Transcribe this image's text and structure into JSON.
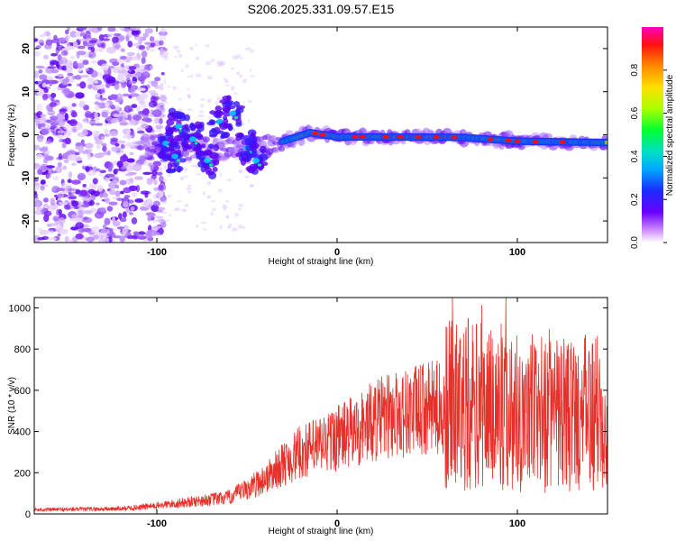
{
  "title": "S206.2025.331.09.57.E15",
  "chart_data": [
    {
      "type": "heatmap",
      "xlabel": "Height of straight line (km)",
      "ylabel": "Frequency (Hz)",
      "xlim": [
        -168,
        150
      ],
      "ylim": [
        -25,
        25
      ],
      "xticks": [
        -100,
        0,
        100
      ],
      "yticks": [
        -20,
        -10,
        0,
        10,
        20
      ],
      "colorbar": {
        "label": "Normalized spectral amplitude",
        "range": [
          0,
          1
        ],
        "ticks": [
          "0.0",
          "0.2",
          "0.4",
          "0.6",
          "0.8"
        ]
      },
      "ridge": [
        {
          "x": -100,
          "f": -3.0
        },
        {
          "x": -60,
          "f": -3.5
        },
        {
          "x": -40,
          "f": -3.0
        },
        {
          "x": -30,
          "f": -1.5
        },
        {
          "x": -15,
          "f": 0.5
        },
        {
          "x": 0,
          "f": -0.5
        },
        {
          "x": 25,
          "f": -0.5
        },
        {
          "x": 70,
          "f": -0.6
        },
        {
          "x": 100,
          "f": -1.5
        },
        {
          "x": 150,
          "f": -1.8
        }
      ]
    },
    {
      "type": "line",
      "xlabel": "Height of straight line (km)",
      "ylabel": "SNR (10 * v/v)",
      "xlim": [
        -168,
        150
      ],
      "ylim": [
        0,
        1050
      ],
      "xticks": [
        -100,
        0,
        100
      ],
      "yticks": [
        0,
        200,
        400,
        600,
        800,
        1000
      ],
      "color": "#e8302a",
      "envelope": [
        {
          "x": -168,
          "snr": 20
        },
        {
          "x": -120,
          "snr": 25
        },
        {
          "x": -100,
          "snr": 40
        },
        {
          "x": -80,
          "snr": 60
        },
        {
          "x": -60,
          "snr": 80
        },
        {
          "x": -50,
          "snr": 120
        },
        {
          "x": -40,
          "snr": 170
        },
        {
          "x": -30,
          "snr": 240
        },
        {
          "x": -20,
          "snr": 300
        },
        {
          "x": -10,
          "snr": 330
        },
        {
          "x": 0,
          "snr": 370
        },
        {
          "x": 10,
          "snr": 400
        },
        {
          "x": 20,
          "snr": 450
        },
        {
          "x": 30,
          "snr": 480
        },
        {
          "x": 50,
          "snr": 510
        },
        {
          "x": 70,
          "snr": 530
        },
        {
          "x": 90,
          "snr": 520
        },
        {
          "x": 110,
          "snr": 490
        },
        {
          "x": 130,
          "snr": 470
        },
        {
          "x": 150,
          "snr": 500
        }
      ]
    }
  ]
}
